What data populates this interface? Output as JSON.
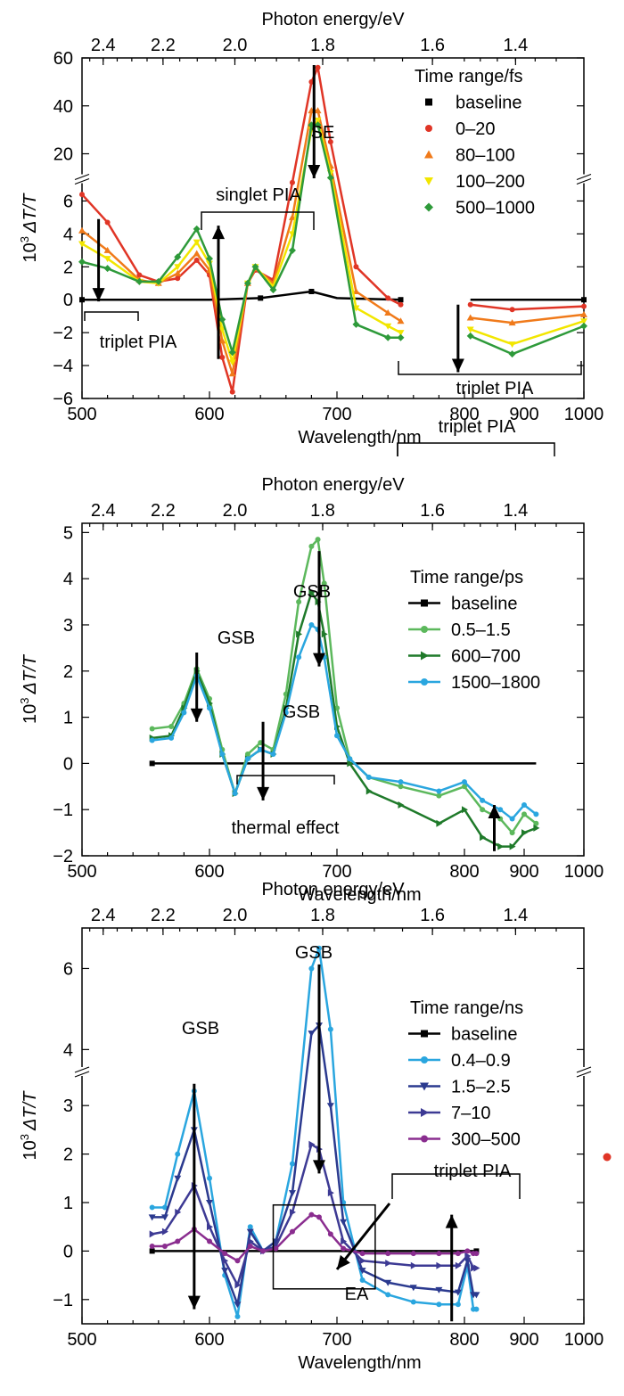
{
  "colors": {
    "red": "#e03526",
    "orange": "#f07a1a",
    "yellow": "#f2e600",
    "green": "#2e9a3a",
    "dark_green": "#1f7a2a",
    "light_green": "#5cb85c",
    "sky_blue": "#2aa6df",
    "navy": "#2b3a8f",
    "indigo": "#3d3a94",
    "purple": "#8a2d8f",
    "black": "#000000"
  },
  "chart_data": [
    {
      "type": "line",
      "xlabel": "Wavelength/nm",
      "x2label": "Photon energy/eV",
      "ylabel_main": "10",
      "ylabel_sup": "3",
      "ylabel_rest": "ΔT/T",
      "xtick_labels": [
        "500",
        "600",
        "700",
        "800",
        "900",
        "1000"
      ],
      "energy_tick_labels": [
        "2.4",
        "2.2",
        "2.0",
        "1.8",
        "1.6",
        "1.4"
      ],
      "ytick_labels_lower": [
        "6",
        "4",
        "2",
        "0",
        "−2",
        "−4",
        "−6"
      ],
      "ytick_labels_upper": [
        "20",
        "40",
        "60"
      ],
      "xlim": [
        500,
        1000
      ],
      "x_scale": "linear 500–800, compressed 800–1000",
      "ylim": [
        -6,
        60
      ],
      "y_axis_break": [
        7,
        12
      ],
      "legend_title": "Time range/fs",
      "legend_position": "top-right",
      "series": [
        {
          "name": "baseline",
          "color": "black",
          "marker": "square",
          "x": [
            500,
            600,
            640,
            660,
            680,
            700,
            750,
            810,
            1000
          ],
          "y": [
            0,
            0,
            0.1,
            0.3,
            0.5,
            0.1,
            0,
            0,
            0
          ]
        },
        {
          "name": "0–20",
          "color": "red",
          "marker": "circle",
          "x": [
            500,
            520,
            545,
            560,
            575,
            590,
            600,
            610,
            618,
            630,
            636,
            650,
            665,
            680,
            685,
            695,
            715,
            740,
            750,
            810,
            880,
            1000
          ],
          "y": [
            6.4,
            4.7,
            1.5,
            1.1,
            1.3,
            2.4,
            1.5,
            -3.5,
            -5.6,
            1.0,
            1.8,
            1.2,
            8.0,
            50.0,
            56.0,
            25.0,
            2.0,
            0.1,
            -0.3,
            -0.3,
            -0.6,
            -0.4
          ]
        },
        {
          "name": "80–100",
          "color": "orange",
          "marker": "triangle-up",
          "x": [
            500,
            520,
            545,
            560,
            575,
            590,
            600,
            610,
            618,
            630,
            636,
            650,
            665,
            680,
            685,
            695,
            715,
            740,
            750,
            810,
            880,
            1000
          ],
          "y": [
            4.2,
            3.0,
            1.2,
            1.0,
            1.6,
            2.8,
            1.8,
            -2.5,
            -4.5,
            1.0,
            1.9,
            1.0,
            5.0,
            38.0,
            38.0,
            15.0,
            0.5,
            -0.8,
            -1.3,
            -1.1,
            -1.4,
            -0.9
          ]
        },
        {
          "name": "100–200",
          "color": "yellow",
          "marker": "triangle-down",
          "x": [
            500,
            520,
            545,
            560,
            575,
            590,
            600,
            610,
            618,
            630,
            636,
            650,
            665,
            680,
            685,
            695,
            715,
            740,
            750,
            810,
            880,
            1000
          ],
          "y": [
            3.4,
            2.5,
            1.1,
            1.0,
            2.0,
            3.5,
            2.2,
            -1.8,
            -3.8,
            1.0,
            2.0,
            0.8,
            4.0,
            30.0,
            34.0,
            12.0,
            -0.5,
            -1.6,
            -2.0,
            -1.8,
            -2.7,
            -1.3
          ]
        },
        {
          "name": "500–1000",
          "color": "green",
          "marker": "diamond",
          "x": [
            500,
            520,
            545,
            560,
            575,
            590,
            600,
            610,
            618,
            630,
            636,
            650,
            665,
            680,
            685,
            695,
            715,
            740,
            750,
            810,
            880,
            1000
          ],
          "y": [
            2.3,
            1.9,
            1.1,
            1.1,
            2.6,
            4.3,
            2.5,
            -1.2,
            -3.2,
            1.0,
            2.0,
            0.6,
            3.0,
            32.0,
            32.0,
            10.0,
            -1.5,
            -2.3,
            -2.3,
            -2.2,
            -3.3,
            -1.6
          ]
        }
      ],
      "annotations": [
        "SE",
        "singlet PIA",
        "triplet PIA",
        "triplet PIA"
      ]
    },
    {
      "type": "line",
      "xlabel": "Wavelength/nm",
      "x2label": "Photon energy/eV",
      "ylabel_main": "10",
      "ylabel_sup": "3",
      "ylabel_rest": "ΔT/T",
      "xtick_labels": [
        "500",
        "600",
        "700",
        "800",
        "900",
        "1000"
      ],
      "energy_tick_labels": [
        "2.4",
        "2.2",
        "2.0",
        "1.8",
        "1.6",
        "1.4"
      ],
      "ytick_labels": [
        "−2",
        "−1",
        "0",
        "1",
        "2",
        "3",
        "4",
        "5"
      ],
      "xlim": [
        500,
        1000
      ],
      "x_scale": "linear 500–800, compressed 800–1000",
      "ylim": [
        -2,
        5.2
      ],
      "legend_title": "Time range/ps",
      "legend_position": "right",
      "series": [
        {
          "name": "baseline",
          "color": "black",
          "marker": "square",
          "x": [
            555,
            920
          ],
          "y": [
            0,
            0
          ]
        },
        {
          "name": "0.5–1.5",
          "color": "light_green",
          "marker": "circle",
          "x": [
            555,
            570,
            580,
            590,
            600,
            610,
            620,
            630,
            640,
            650,
            660,
            670,
            680,
            685,
            690,
            700,
            710,
            725,
            750,
            780,
            800,
            830,
            860,
            880,
            900,
            920
          ],
          "y": [
            0.75,
            0.8,
            1.3,
            2.05,
            1.4,
            0.3,
            -0.65,
            0.2,
            0.45,
            0.3,
            1.5,
            3.5,
            4.7,
            4.85,
            3.9,
            1.2,
            0.1,
            -0.3,
            -0.5,
            -0.7,
            -0.5,
            -1.0,
            -1.2,
            -1.5,
            -1.1,
            -1.3
          ]
        },
        {
          "name": "600–700",
          "color": "dark_green",
          "marker": "triangle-right",
          "x": [
            555,
            570,
            580,
            590,
            600,
            610,
            620,
            630,
            640,
            650,
            660,
            670,
            680,
            685,
            690,
            700,
            710,
            725,
            750,
            780,
            800,
            830,
            860,
            880,
            900,
            920
          ],
          "y": [
            0.55,
            0.6,
            1.2,
            2.0,
            1.3,
            0.2,
            -0.65,
            0.1,
            0.3,
            0.2,
            1.2,
            2.8,
            3.7,
            3.5,
            2.8,
            0.8,
            0.0,
            -0.6,
            -0.9,
            -1.3,
            -1.0,
            -1.6,
            -1.8,
            -1.8,
            -1.5,
            -1.4
          ]
        },
        {
          "name": "1500–1800",
          "color": "sky_blue",
          "marker": "circle",
          "x": [
            555,
            570,
            580,
            590,
            600,
            610,
            620,
            630,
            640,
            650,
            660,
            670,
            680,
            685,
            690,
            700,
            710,
            725,
            750,
            780,
            800,
            830,
            860,
            880,
            900,
            920
          ],
          "y": [
            0.5,
            0.55,
            1.1,
            1.9,
            1.2,
            0.2,
            -0.65,
            0.1,
            0.3,
            0.2,
            1.1,
            2.3,
            3.0,
            2.9,
            2.3,
            0.6,
            0.1,
            -0.3,
            -0.4,
            -0.6,
            -0.4,
            -0.8,
            -1.0,
            -1.2,
            -0.9,
            -1.1
          ]
        }
      ],
      "annotations": [
        "GSB",
        "GSB",
        "GSB",
        "thermal effect",
        "triplet PIA"
      ]
    },
    {
      "type": "line",
      "xlabel": "Wavelength/nm",
      "x2label": "Photon energy/eV",
      "ylabel_main": "10",
      "ylabel_sup": "3",
      "ylabel_rest": "ΔT/T",
      "xtick_labels": [
        "500",
        "600",
        "700",
        "800",
        "900",
        "1000"
      ],
      "energy_tick_labels": [
        "2.4",
        "2.2",
        "2.0",
        "1.8",
        "1.6",
        "1.4"
      ],
      "ytick_labels_lower": [
        "−1",
        "0",
        "1",
        "2",
        "3"
      ],
      "ytick_labels_upper": [
        "4",
        "6"
      ],
      "xlim": [
        500,
        1000
      ],
      "x_scale": "linear 500–800, compressed 800–1000",
      "ylim": [
        -1.5,
        7
      ],
      "y_axis_break": [
        3.5,
        3.7
      ],
      "legend_title": "Time range/ns",
      "legend_position": "right",
      "series": [
        {
          "name": "baseline",
          "color": "black",
          "marker": "square",
          "x": [
            555,
            800,
            820
          ],
          "y": [
            0,
            0,
            0
          ]
        },
        {
          "name": "0.4–0.9",
          "color": "sky_blue",
          "marker": "circle",
          "x": [
            555,
            565,
            575,
            588,
            600,
            612,
            622,
            632,
            642,
            652,
            665,
            680,
            686,
            695,
            705,
            720,
            740,
            760,
            780,
            795,
            805,
            815,
            820
          ],
          "y": [
            0.9,
            0.9,
            2.0,
            3.3,
            1.5,
            -0.5,
            -1.35,
            0.5,
            0.0,
            0.2,
            1.8,
            6.0,
            6.5,
            4.5,
            1.0,
            -0.6,
            -0.9,
            -1.05,
            -1.1,
            -1.1,
            -0.3,
            -1.2,
            -1.2
          ]
        },
        {
          "name": "1.5–2.5",
          "color": "navy",
          "marker": "triangle-down",
          "x": [
            555,
            565,
            575,
            588,
            600,
            612,
            622,
            632,
            642,
            652,
            665,
            680,
            686,
            695,
            705,
            720,
            740,
            760,
            780,
            795,
            805,
            815,
            820
          ],
          "y": [
            0.7,
            0.7,
            1.5,
            2.5,
            1.0,
            -0.4,
            -1.1,
            0.4,
            0.0,
            0.2,
            1.2,
            4.4,
            4.6,
            3.0,
            0.6,
            -0.4,
            -0.65,
            -0.75,
            -0.8,
            -0.85,
            -0.2,
            -0.9,
            -0.9
          ]
        },
        {
          "name": "7–10",
          "color": "indigo",
          "marker": "triangle-right",
          "x": [
            555,
            565,
            575,
            588,
            600,
            612,
            622,
            632,
            642,
            652,
            665,
            680,
            686,
            695,
            705,
            720,
            740,
            760,
            780,
            795,
            805,
            815,
            820
          ],
          "y": [
            0.35,
            0.4,
            0.8,
            1.35,
            0.5,
            -0.2,
            -0.7,
            0.2,
            0.0,
            0.1,
            0.8,
            2.2,
            2.1,
            1.2,
            0.2,
            -0.2,
            -0.25,
            -0.3,
            -0.3,
            -0.3,
            -0.1,
            -0.35,
            -0.35
          ]
        },
        {
          "name": "300–500",
          "color": "purple",
          "marker": "circle",
          "x": [
            555,
            565,
            575,
            588,
            600,
            612,
            622,
            632,
            642,
            652,
            665,
            680,
            686,
            695,
            705,
            720,
            740,
            760,
            780,
            795,
            805,
            815,
            820
          ],
          "y": [
            0.1,
            0.1,
            0.2,
            0.45,
            0.2,
            -0.05,
            -0.2,
            0.1,
            0.0,
            0.05,
            0.4,
            0.75,
            0.7,
            0.35,
            0.05,
            -0.05,
            -0.05,
            -0.05,
            -0.05,
            -0.05,
            0.0,
            -0.05,
            -0.05
          ]
        }
      ],
      "annotations": [
        "GSB",
        "GSB",
        "EA",
        "triplet PIA"
      ]
    }
  ]
}
